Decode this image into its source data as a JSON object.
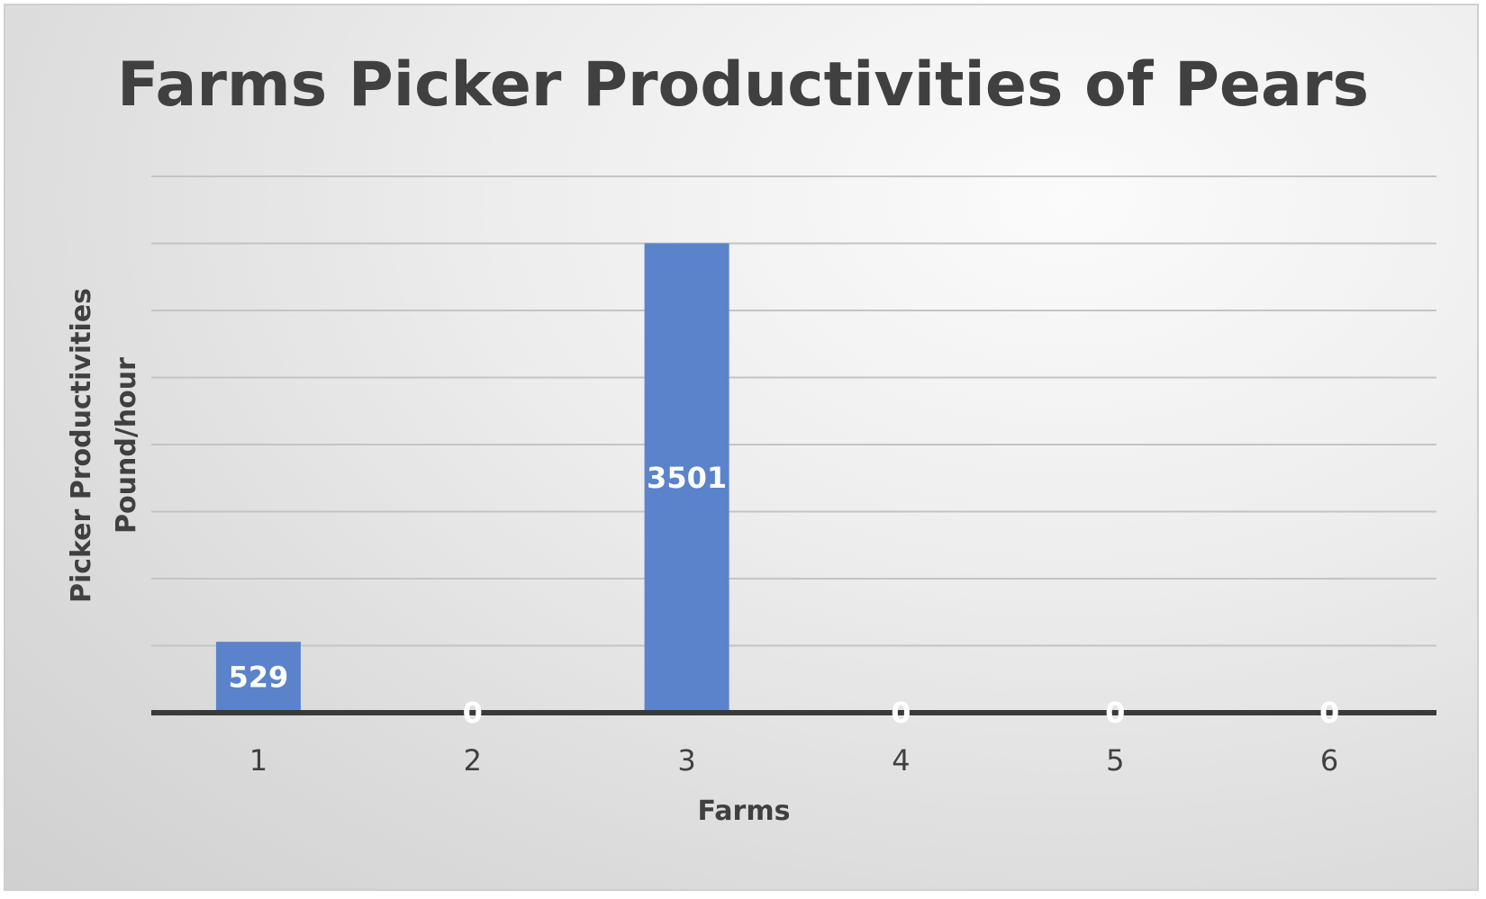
{
  "chart_data": {
    "type": "bar",
    "title": "Farms Picker Productivities of Pears",
    "xlabel": "Farms",
    "ylabel_line1": "Picker Productivities",
    "ylabel_line2": "Pound/hour",
    "categories": [
      "1",
      "2",
      "3",
      "4",
      "5",
      "6"
    ],
    "values": [
      529,
      0,
      3501,
      0,
      0,
      0
    ],
    "data_labels": [
      "529",
      "0",
      "3501",
      "0",
      "0",
      "0"
    ],
    "ylim": [
      0,
      4000
    ],
    "grid_step": 500,
    "gridlines": true,
    "legend": "none",
    "colors": {
      "bar": "#5a83cc",
      "data_label": "#ffffff",
      "text": "#404040",
      "gridline": "#c4c4c4",
      "baseline": "#3a3a3a"
    }
  }
}
